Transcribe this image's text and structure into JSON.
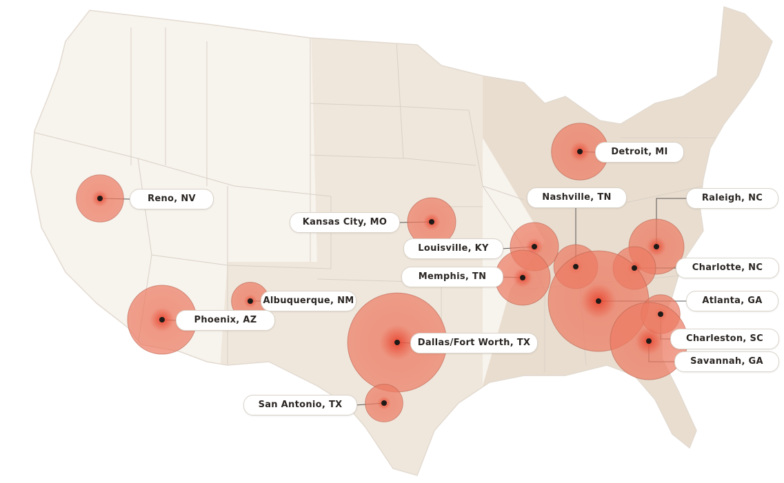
{
  "map": {
    "region": "Contiguous United States",
    "colors": {
      "west": "#f7f3ed",
      "central": "#f0e7dc",
      "east": "#e9ddcf",
      "border": "#d8d0c6",
      "bubble": "#ec7a62",
      "dot": "#1e1a18"
    },
    "markers": [
      {
        "label": "Reno, NV",
        "relative_size": 0.22
      },
      {
        "label": "Kansas City, MO",
        "relative_size": 0.23
      },
      {
        "label": "Detroit, MI",
        "relative_size": 0.32
      },
      {
        "label": "Nashville, TN",
        "relative_size": 0.19
      },
      {
        "label": "Raleigh, NC",
        "relative_size": 0.3
      },
      {
        "label": "Louisville, KY",
        "relative_size": 0.23
      },
      {
        "label": "Memphis, TN",
        "relative_size": 0.3
      },
      {
        "label": "Charlotte, NC",
        "relative_size": 0.18
      },
      {
        "label": "Albuquerque, NM",
        "relative_size": 0.14
      },
      {
        "label": "Atlanta, GA",
        "relative_size": 1.0
      },
      {
        "label": "Phoenix, AZ",
        "relative_size": 0.47
      },
      {
        "label": "Dallas/Fort Worth, TX",
        "relative_size": 0.97
      },
      {
        "label": "Charleston, SC",
        "relative_size": 0.15
      },
      {
        "label": "Savannah, GA",
        "relative_size": 0.59
      },
      {
        "label": "San Antonio, TX",
        "relative_size": 0.14
      }
    ]
  }
}
